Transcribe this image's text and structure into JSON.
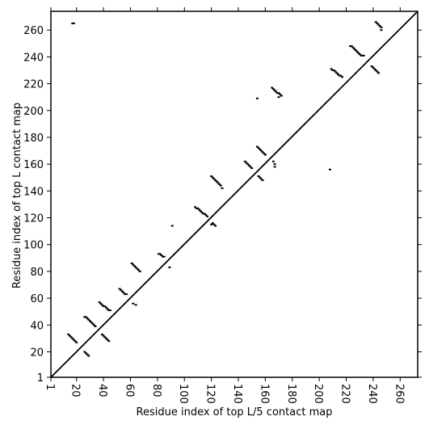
{
  "chart_data": {
    "type": "scatter",
    "xlabel": "Residue index of top L/5 contact map",
    "ylabel": "Residue index of top L contact map",
    "color": "#000000",
    "x": [
      17,
      18,
      14,
      15,
      16,
      17,
      18,
      19,
      20,
      26,
      27,
      28,
      29,
      26,
      27,
      28,
      29,
      30,
      31,
      32,
      33,
      34,
      37,
      38,
      39,
      40,
      41,
      42,
      43,
      44,
      45,
      39,
      40,
      41,
      42,
      43,
      44,
      52,
      53,
      54,
      55,
      56,
      57,
      62,
      64,
      61,
      62,
      63,
      64,
      65,
      66,
      67,
      81,
      82,
      83,
      84,
      85,
      89,
      91,
      108,
      109,
      110,
      111,
      112,
      113,
      114,
      115,
      116,
      117,
      120,
      121,
      122,
      123,
      120,
      121,
      122,
      123,
      124,
      125,
      126,
      127,
      128,
      145,
      146,
      147,
      148,
      149,
      150,
      154,
      154,
      155,
      156,
      157,
      158,
      159,
      160,
      155,
      156,
      157,
      158,
      166,
      167,
      167,
      165,
      166,
      167,
      168,
      169,
      170,
      171,
      172,
      170,
      208,
      209,
      210,
      211,
      212,
      213,
      214,
      215,
      216,
      217,
      223,
      224,
      225,
      226,
      227,
      228,
      229,
      230,
      231,
      232,
      233,
      239,
      240,
      241,
      242,
      243,
      244,
      242,
      243,
      244,
      245,
      246,
      246
    ],
    "values": [
      265,
      265,
      33,
      32,
      31,
      30,
      29,
      28,
      27,
      20,
      19,
      18,
      17,
      46,
      46,
      45,
      44,
      43,
      42,
      41,
      40,
      39,
      57,
      56,
      55,
      54,
      54,
      53,
      52,
      51,
      51,
      33,
      32,
      31,
      30,
      29,
      28,
      67,
      66,
      65,
      64,
      63,
      63,
      56,
      55,
      86,
      85,
      84,
      83,
      82,
      81,
      80,
      93,
      93,
      92,
      91,
      91,
      83,
      114,
      128,
      127,
      127,
      126,
      125,
      124,
      123,
      123,
      122,
      121,
      115,
      116,
      115,
      114,
      151,
      150,
      149,
      148,
      147,
      146,
      145,
      144,
      142,
      162,
      161,
      160,
      159,
      158,
      157,
      209,
      173,
      172,
      171,
      170,
      169,
      168,
      167,
      151,
      150,
      149,
      148,
      162,
      160,
      158,
      217,
      216,
      215,
      214,
      213,
      213,
      212,
      211,
      210,
      156,
      231,
      230,
      230,
      229,
      228,
      227,
      226,
      226,
      225,
      248,
      248,
      247,
      246,
      245,
      244,
      243,
      242,
      241,
      241,
      241,
      233,
      232,
      231,
      230,
      229,
      228,
      266,
      265,
      264,
      263,
      262,
      260
    ],
    "xlim": [
      1,
      273
    ],
    "ylim": [
      1,
      274
    ],
    "xticks": [
      1,
      20,
      40,
      60,
      80,
      100,
      120,
      140,
      160,
      180,
      200,
      220,
      240,
      260
    ],
    "yticks": [
      1,
      20,
      40,
      60,
      80,
      100,
      120,
      140,
      160,
      180,
      200,
      220,
      240,
      260
    ]
  }
}
